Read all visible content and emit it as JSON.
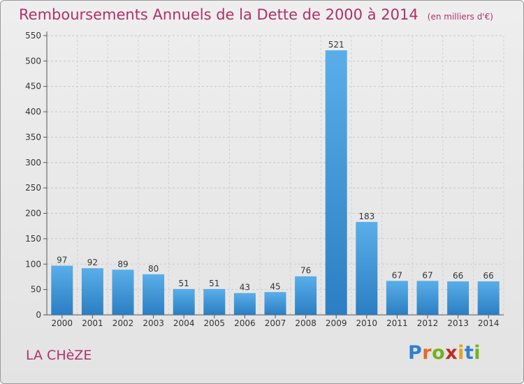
{
  "header": {
    "title": "Remboursements Annuels de la Dette de 2000 à 2014",
    "subtitle": "(en milliers d'€)"
  },
  "footer": {
    "commune": "LA CHèZE",
    "logo_letters": [
      "P",
      "r",
      "o",
      "x",
      "i",
      "t",
      "i"
    ]
  },
  "chart_data": {
    "type": "bar",
    "categories": [
      "2000",
      "2001",
      "2002",
      "2003",
      "2004",
      "2005",
      "2006",
      "2007",
      "2008",
      "2009",
      "2010",
      "2011",
      "2012",
      "2013",
      "2014"
    ],
    "values": [
      97,
      92,
      89,
      80,
      51,
      51,
      43,
      45,
      76,
      521,
      183,
      67,
      67,
      66,
      66
    ],
    "ylim": [
      0,
      550
    ],
    "yticks": [
      0,
      50,
      100,
      150,
      200,
      250,
      300,
      350,
      400,
      450,
      500,
      550
    ],
    "grid": true,
    "bar_color_light": "#5aaee8",
    "bar_color_dark": "#2b7ec2",
    "title_color": "#b0306a"
  }
}
